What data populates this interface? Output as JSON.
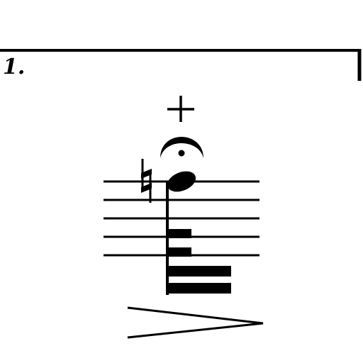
{
  "score": {
    "ending": {
      "label": "1."
    },
    "staff": {
      "lines": 5
    },
    "note": {
      "accidental": "natural",
      "duration": "64th",
      "head": "filled",
      "stem": "down",
      "beams_left": 2,
      "beams_right": 2
    },
    "articulations": [
      {
        "name": "stopped",
        "symbol": "+"
      },
      {
        "name": "fermata"
      }
    ],
    "dynamics": {
      "hairpin": "decrescendo"
    },
    "colors": {
      "ink": "#000000",
      "paper": "#ffffff"
    }
  }
}
